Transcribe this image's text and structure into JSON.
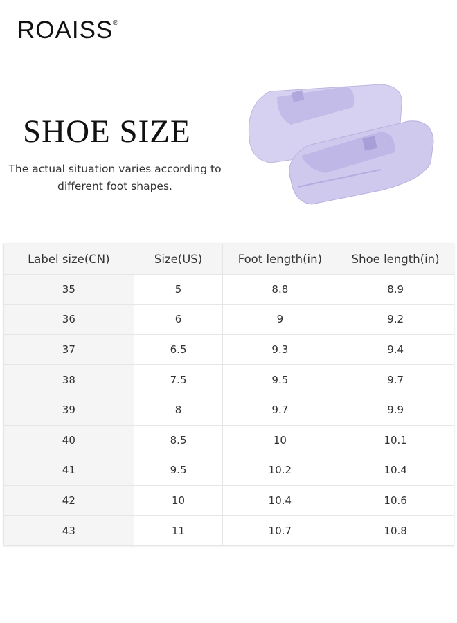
{
  "brand": {
    "logo": "ROAISS",
    "registered": "®"
  },
  "title": "SHOE SIZE",
  "subtitle": "The actual situation varies according to different foot shapes.",
  "product_image": {
    "description_icon": "slipper-image",
    "color": "#c9c3ea"
  },
  "table": {
    "headers": [
      "Label size(CN)",
      "Size(US)",
      "Foot length(in)",
      "Shoe length(in)"
    ],
    "rows": [
      [
        "35",
        "5",
        "8.8",
        "8.9"
      ],
      [
        "36",
        "6",
        "9",
        "9.2"
      ],
      [
        "37",
        "6.5",
        "9.3",
        "9.4"
      ],
      [
        "38",
        "7.5",
        "9.5",
        "9.7"
      ],
      [
        "39",
        "8",
        "9.7",
        "9.9"
      ],
      [
        "40",
        "8.5",
        "10",
        "10.1"
      ],
      [
        "41",
        "9.5",
        "10.2",
        "10.4"
      ],
      [
        "42",
        "10",
        "10.4",
        "10.6"
      ],
      [
        "43",
        "11",
        "10.7",
        "10.8"
      ]
    ]
  }
}
